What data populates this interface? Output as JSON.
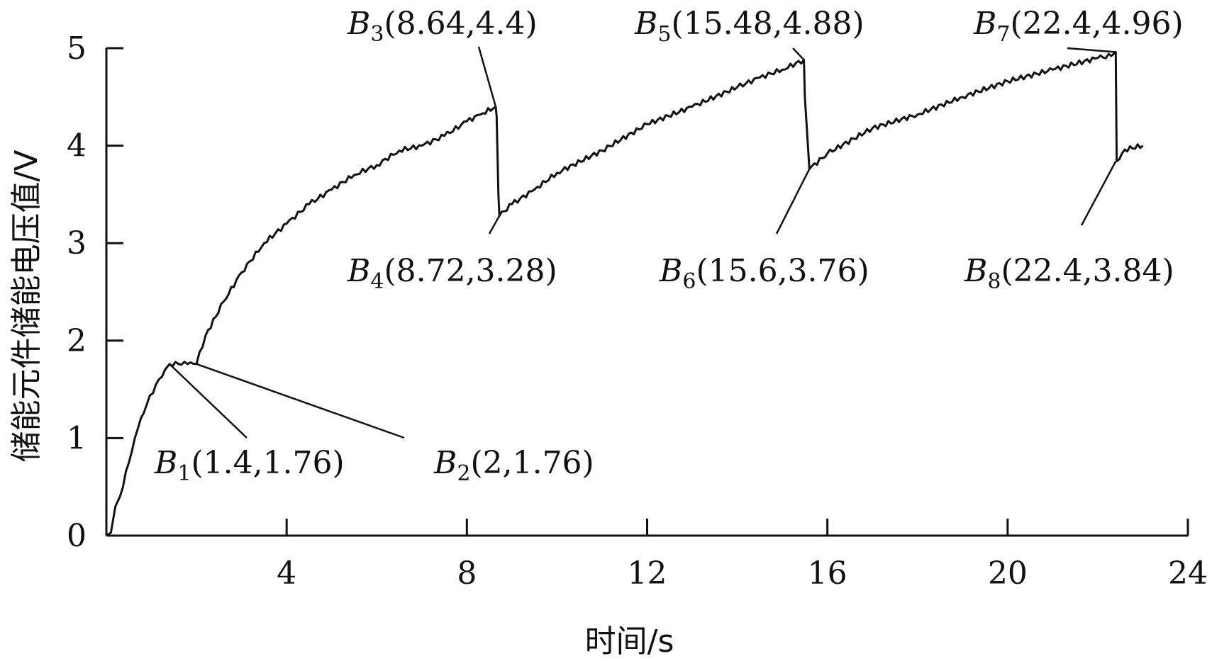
{
  "chart_data": {
    "type": "line",
    "title": "",
    "xlabel": "时间/s",
    "ylabel": "储能元件储能电压值/V",
    "xlim": [
      0,
      24
    ],
    "ylim": [
      0,
      5
    ],
    "xticks": [
      4,
      8,
      12,
      16,
      20,
      24
    ],
    "yticks": [
      0,
      1,
      2,
      3,
      4,
      5
    ],
    "grid": false,
    "line_color": "#111111",
    "series": [
      {
        "x": [
          0,
          0.1,
          0.2,
          0.3,
          0.5,
          0.7,
          0.9,
          1.1,
          1.3,
          1.4,
          1.6,
          1.8,
          2.0,
          2.2,
          2.6,
          3.0,
          3.5,
          4.0,
          4.5,
          5.0,
          5.5,
          6.0,
          6.5,
          7.0,
          7.5,
          8.0,
          8.3,
          8.64,
          8.66,
          8.7,
          8.72,
          9.0,
          9.5,
          10.0,
          11.0,
          12.0,
          13.0,
          14.0,
          14.5,
          15.0,
          15.48,
          15.5,
          15.6,
          16.0,
          17.0,
          18.0,
          19.0,
          20.0,
          21.0,
          22.0,
          22.3,
          22.4,
          22.42,
          22.6,
          23.0
        ],
        "y": [
          0,
          0.03,
          0.3,
          0.4,
          0.75,
          1.1,
          1.35,
          1.55,
          1.7,
          1.76,
          1.76,
          1.76,
          1.76,
          2.05,
          2.4,
          2.7,
          3.0,
          3.2,
          3.4,
          3.55,
          3.7,
          3.8,
          3.95,
          4.0,
          4.1,
          4.25,
          4.32,
          4.4,
          4.3,
          3.5,
          3.28,
          3.4,
          3.55,
          3.72,
          3.95,
          4.22,
          4.4,
          4.6,
          4.7,
          4.78,
          4.88,
          4.5,
          3.76,
          3.92,
          4.18,
          4.32,
          4.5,
          4.66,
          4.78,
          4.9,
          4.92,
          4.96,
          3.84,
          3.96,
          4.0
        ]
      }
    ],
    "annotations": [
      {
        "id": "B1",
        "letter": "B",
        "sub": "1",
        "coords": "(1.4,1.76)",
        "x": 1.4,
        "y": 1.76
      },
      {
        "id": "B2",
        "letter": "B",
        "sub": "2",
        "coords": "(2,1.76)",
        "x": 2.0,
        "y": 1.76
      },
      {
        "id": "B3",
        "letter": "B",
        "sub": "3",
        "coords": "(8.64,4.4)",
        "x": 8.64,
        "y": 4.4
      },
      {
        "id": "B4",
        "letter": "B",
        "sub": "4",
        "coords": "(8.72,3.28)",
        "x": 8.72,
        "y": 3.28
      },
      {
        "id": "B5",
        "letter": "B",
        "sub": "5",
        "coords": "(15.48,4.88)",
        "x": 15.48,
        "y": 4.88
      },
      {
        "id": "B6",
        "letter": "B",
        "sub": "6",
        "coords": "(15.6,3.76)",
        "x": 15.6,
        "y": 3.76
      },
      {
        "id": "B7",
        "letter": "B",
        "sub": "7",
        "coords": "(22.4,4.96)",
        "x": 22.4,
        "y": 4.96
      },
      {
        "id": "B8",
        "letter": "B",
        "sub": "8",
        "coords": "(22.4,3.84)",
        "x": 22.4,
        "y": 3.84
      }
    ]
  }
}
